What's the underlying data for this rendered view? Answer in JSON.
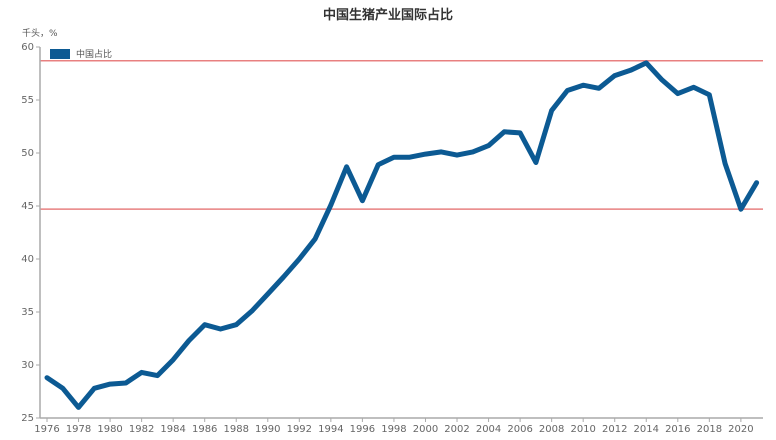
{
  "chart_data": {
    "type": "line",
    "title": "中国生猪产业国际占比",
    "unit_label": "千头，%",
    "xlabel": "",
    "ylabel": "千头，%",
    "ylim": [
      25,
      60
    ],
    "yticks": [
      25,
      30,
      35,
      40,
      45,
      50,
      55,
      60
    ],
    "xticks": [
      "1976",
      "1978",
      "1980",
      "1982",
      "1984",
      "1986",
      "1988",
      "1990",
      "1992",
      "1994",
      "1996",
      "1998",
      "2000",
      "2002",
      "2004",
      "2006",
      "2008",
      "2010",
      "2012",
      "2014",
      "2016",
      "2018",
      "2020"
    ],
    "x": [
      1976,
      1977,
      1978,
      1979,
      1980,
      1981,
      1982,
      1983,
      1984,
      1985,
      1986,
      1987,
      1988,
      1989,
      1990,
      1991,
      1992,
      1993,
      1994,
      1995,
      1996,
      1997,
      1998,
      1999,
      2000,
      2001,
      2002,
      2003,
      2004,
      2005,
      2006,
      2007,
      2008,
      2009,
      2010,
      2011,
      2012,
      2013,
      2014,
      2015,
      2016,
      2017,
      2018,
      2019,
      2020,
      2021
    ],
    "series": [
      {
        "name": "中国占比",
        "color": "#0c5a93",
        "values": [
          28.8,
          27.8,
          26.0,
          27.8,
          28.2,
          28.3,
          29.3,
          29.0,
          30.5,
          32.3,
          33.8,
          33.4,
          33.8,
          35.1,
          36.7,
          38.3,
          40.0,
          41.9,
          45.1,
          48.7,
          45.5,
          48.9,
          49.6,
          49.6,
          49.9,
          50.1,
          49.8,
          50.1,
          50.7,
          52.0,
          51.9,
          49.1,
          54.0,
          55.9,
          56.4,
          56.1,
          57.3,
          57.8,
          58.5,
          56.9,
          55.6,
          56.2,
          55.5,
          49.0,
          44.7,
          47.2
        ]
      }
    ],
    "reference_lines": [
      {
        "value": 58.7,
        "color": "#e88080"
      },
      {
        "value": 44.7,
        "color": "#e88080"
      }
    ],
    "legend": {
      "position": "top-left",
      "entries": [
        "中国占比"
      ]
    },
    "grid": false
  }
}
